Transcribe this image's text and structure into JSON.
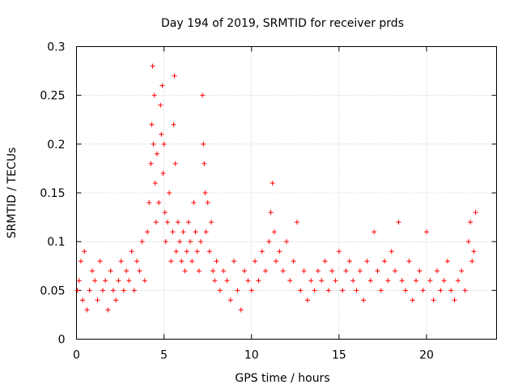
{
  "chart_data": {
    "type": "scatter",
    "title": "Day 194 of 2019, SRMTID for receiver prds",
    "xlabel": "GPS time / hours",
    "ylabel": "SRMTID / TECUs",
    "xlim": [
      0,
      24
    ],
    "ylim": [
      0,
      0.3
    ],
    "xticks": [
      0,
      5,
      10,
      15,
      20
    ],
    "xtick_labels": [
      "0",
      "5",
      "10",
      "15",
      "20"
    ],
    "yticks": [
      0,
      0.05,
      0.1,
      0.15,
      0.2,
      0.25,
      0.3
    ],
    "ytick_labels": [
      "0",
      "0.05",
      "0.1",
      "0.15",
      "0.2",
      "0.25",
      "0.3"
    ],
    "grid": true,
    "marker": "+",
    "series": [
      {
        "name": "SRMTID",
        "color": "#ff0000",
        "x": [
          0.05,
          0.15,
          0.25,
          0.35,
          0.45,
          0.6,
          0.75,
          0.9,
          1.05,
          1.2,
          1.35,
          1.5,
          1.65,
          1.8,
          1.95,
          2.1,
          2.25,
          2.4,
          2.55,
          2.7,
          2.85,
          3.0,
          3.15,
          3.3,
          3.45,
          3.6,
          3.75,
          3.9,
          4.05,
          4.15,
          4.25,
          4.3,
          4.35,
          4.4,
          4.45,
          4.5,
          4.55,
          4.6,
          4.7,
          4.8,
          4.85,
          4.9,
          4.95,
          5.0,
          5.05,
          5.1,
          5.2,
          5.3,
          5.4,
          5.5,
          5.55,
          5.6,
          5.65,
          5.7,
          5.8,
          5.9,
          6.0,
          6.1,
          6.2,
          6.3,
          6.4,
          6.5,
          6.6,
          6.7,
          6.8,
          6.9,
          7.0,
          7.1,
          7.2,
          7.25,
          7.3,
          7.35,
          7.4,
          7.5,
          7.6,
          7.7,
          7.8,
          7.9,
          8.0,
          8.2,
          8.4,
          8.6,
          8.8,
          9.0,
          9.2,
          9.4,
          9.6,
          9.8,
          10.0,
          10.2,
          10.4,
          10.6,
          10.8,
          11.0,
          11.1,
          11.2,
          11.3,
          11.4,
          11.6,
          11.8,
          12.0,
          12.2,
          12.4,
          12.6,
          12.8,
          13.0,
          13.2,
          13.4,
          13.6,
          13.8,
          14.0,
          14.2,
          14.4,
          14.6,
          14.8,
          15.0,
          15.2,
          15.4,
          15.6,
          15.8,
          16.0,
          16.2,
          16.4,
          16.6,
          16.8,
          17.0,
          17.2,
          17.4,
          17.6,
          17.8,
          18.0,
          18.2,
          18.4,
          18.6,
          18.8,
          19.0,
          19.2,
          19.4,
          19.6,
          19.8,
          20.0,
          20.2,
          20.4,
          20.6,
          20.8,
          21.0,
          21.2,
          21.4,
          21.6,
          21.8,
          22.0,
          22.2,
          22.4,
          22.5,
          22.6,
          22.7,
          22.8
        ],
        "y": [
          0.05,
          0.06,
          0.08,
          0.04,
          0.09,
          0.03,
          0.05,
          0.07,
          0.06,
          0.04,
          0.08,
          0.05,
          0.06,
          0.03,
          0.07,
          0.05,
          0.04,
          0.06,
          0.08,
          0.05,
          0.07,
          0.06,
          0.09,
          0.05,
          0.08,
          0.07,
          0.1,
          0.06,
          0.11,
          0.14,
          0.18,
          0.22,
          0.28,
          0.2,
          0.25,
          0.16,
          0.12,
          0.19,
          0.14,
          0.24,
          0.21,
          0.26,
          0.17,
          0.2,
          0.13,
          0.1,
          0.12,
          0.15,
          0.08,
          0.11,
          0.22,
          0.27,
          0.18,
          0.09,
          0.12,
          0.1,
          0.08,
          0.11,
          0.07,
          0.09,
          0.12,
          0.1,
          0.08,
          0.14,
          0.11,
          0.09,
          0.07,
          0.1,
          0.25,
          0.2,
          0.18,
          0.15,
          0.11,
          0.14,
          0.09,
          0.12,
          0.07,
          0.06,
          0.08,
          0.05,
          0.07,
          0.06,
          0.04,
          0.08,
          0.05,
          0.03,
          0.07,
          0.06,
          0.05,
          0.08,
          0.06,
          0.09,
          0.07,
          0.1,
          0.13,
          0.16,
          0.11,
          0.08,
          0.09,
          0.07,
          0.1,
          0.06,
          0.08,
          0.12,
          0.05,
          0.07,
          0.04,
          0.06,
          0.05,
          0.07,
          0.06,
          0.08,
          0.05,
          0.07,
          0.06,
          0.09,
          0.05,
          0.07,
          0.08,
          0.06,
          0.05,
          0.07,
          0.04,
          0.08,
          0.06,
          0.11,
          0.07,
          0.05,
          0.08,
          0.06,
          0.09,
          0.07,
          0.12,
          0.06,
          0.05,
          0.08,
          0.04,
          0.06,
          0.07,
          0.05,
          0.11,
          0.06,
          0.04,
          0.07,
          0.05,
          0.06,
          0.08,
          0.05,
          0.04,
          0.06,
          0.07,
          0.05,
          0.1,
          0.12,
          0.08,
          0.09,
          0.13
        ]
      }
    ]
  }
}
